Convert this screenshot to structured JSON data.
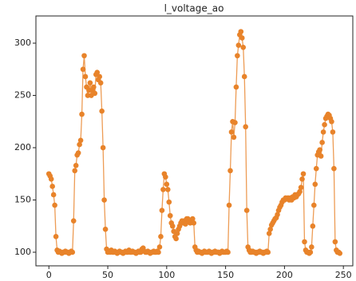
{
  "chart_data": {
    "type": "line",
    "title": "l_voltage_ao",
    "x": [
      0,
      1,
      2,
      3,
      4,
      5,
      6,
      7,
      8,
      9,
      10,
      11,
      12,
      13,
      14,
      15,
      16,
      17,
      18,
      19,
      20,
      21,
      22,
      23,
      24,
      25,
      26,
      27,
      28,
      29,
      30,
      31,
      32,
      33,
      34,
      35,
      36,
      37,
      38,
      39,
      40,
      41,
      42,
      43,
      44,
      45,
      46,
      47,
      48,
      49,
      50,
      51,
      52,
      53,
      54,
      55,
      56,
      57,
      58,
      59,
      60,
      61,
      62,
      63,
      64,
      65,
      66,
      67,
      68,
      69,
      70,
      71,
      72,
      73,
      74,
      75,
      76,
      77,
      78,
      79,
      80,
      81,
      82,
      83,
      84,
      85,
      86,
      87,
      88,
      89,
      90,
      91,
      92,
      93,
      94,
      95,
      96,
      97,
      98,
      99,
      100,
      101,
      102,
      103,
      104,
      105,
      106,
      107,
      108,
      109,
      110,
      111,
      112,
      113,
      114,
      115,
      116,
      117,
      118,
      119,
      120,
      121,
      122,
      123,
      124,
      125,
      126,
      127,
      128,
      129,
      130,
      131,
      132,
      133,
      134,
      135,
      136,
      137,
      138,
      139,
      140,
      141,
      142,
      143,
      144,
      145,
      146,
      147,
      148,
      149,
      150,
      151,
      152,
      153,
      154,
      155,
      156,
      157,
      158,
      159,
      160,
      161,
      162,
      163,
      164,
      165,
      166,
      167,
      168,
      169,
      170,
      171,
      172,
      173,
      174,
      175,
      176,
      177,
      178,
      179,
      180,
      181,
      182,
      183,
      184,
      185,
      186,
      187,
      188,
      189,
      190,
      191,
      192,
      193,
      194,
      195,
      196,
      197,
      198,
      199,
      200,
      201,
      202,
      203,
      204,
      205,
      206,
      207,
      208,
      209,
      210,
      211,
      212,
      213,
      214,
      215,
      216,
      217,
      218,
      219,
      220,
      221,
      222,
      223,
      224,
      225,
      226,
      227,
      228,
      229,
      230,
      231,
      232,
      233,
      234,
      235,
      236,
      237,
      238,
      239,
      240,
      241,
      242,
      243,
      244,
      245,
      246,
      247
    ],
    "series": [
      {
        "color": "#e8832a",
        "values": [
          175,
          173,
          170,
          163,
          155,
          145,
          115,
          102,
          100,
          101,
          100,
          99,
          100,
          100,
          101,
          100,
          100,
          99,
          100,
          101,
          100,
          130,
          178,
          183,
          193,
          195,
          203,
          207,
          232,
          275,
          288,
          268,
          258,
          250,
          255,
          262,
          250,
          255,
          258,
          252,
          270,
          272,
          265,
          268,
          262,
          235,
          200,
          150,
          122,
          103,
          100,
          101,
          100,
          102,
          100,
          100,
          101,
          100,
          99,
          100,
          101,
          100,
          100,
          99,
          100,
          101,
          100,
          100,
          102,
          100,
          100,
          101,
          100,
          100,
          99,
          100,
          101,
          100,
          100,
          103,
          104,
          101,
          100,
          100,
          101,
          100,
          99,
          100,
          100,
          101,
          100,
          100,
          101,
          100,
          105,
          115,
          140,
          160,
          175,
          172,
          165,
          160,
          148,
          135,
          128,
          125,
          120,
          115,
          113,
          118,
          122,
          125,
          128,
          130,
          128,
          130,
          127,
          132,
          132,
          130,
          128,
          131,
          132,
          128,
          105,
          102,
          100,
          101,
          100,
          100,
          99,
          100,
          101,
          100,
          100,
          100,
          101,
          100,
          99,
          100,
          100,
          101,
          100,
          100,
          100,
          99,
          100,
          101,
          100,
          100,
          100,
          101,
          100,
          145,
          178,
          215,
          225,
          210,
          224,
          258,
          288,
          298,
          308,
          311,
          305,
          296,
          268,
          220,
          140,
          105,
          102,
          100,
          100,
          101,
          100,
          100,
          99,
          100,
          100,
          101,
          100,
          100,
          99,
          100,
          100,
          101,
          100,
          118,
          122,
          126,
          128,
          130,
          132,
          133,
          136,
          140,
          143,
          145,
          148,
          150,
          150,
          152,
          151,
          152,
          150,
          152,
          150,
          153,
          152,
          155,
          153,
          155,
          156,
          158,
          162,
          170,
          175,
          110,
          102,
          100,
          100,
          99,
          100,
          105,
          125,
          145,
          165,
          180,
          193,
          196,
          198,
          192,
          205,
          215,
          222,
          228,
          230,
          232,
          231,
          228,
          225,
          215,
          180,
          110,
          102,
          100,
          100,
          99
        ]
      }
    ],
    "xlim": [
      -11,
      258
    ],
    "xticks": [
      0,
      50,
      100,
      150,
      200,
      250
    ],
    "ylim": [
      87,
      326
    ],
    "yticks": [
      100,
      150,
      200,
      250,
      300
    ]
  }
}
